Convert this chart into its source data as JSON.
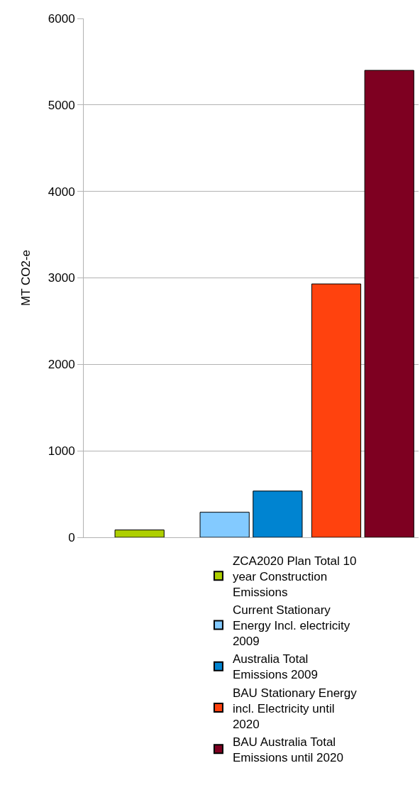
{
  "chart_data": {
    "type": "bar",
    "ylabel": "MT CO2-e",
    "categories": [
      null,
      null,
      null
    ],
    "ylim": [
      0,
      6000
    ],
    "yticks": [
      0,
      1000,
      2000,
      3000,
      4000,
      5000,
      6000
    ],
    "grid": "y",
    "legend": "bottom",
    "series": [
      {
        "name": "ZCA2020 Plan Total 10 year Construction Emissions",
        "color": "#aecf00",
        "values": [
          85,
          null,
          null
        ]
      },
      {
        "name": "Current Stationary Energy Incl. electricity 2009",
        "color": "#83caff",
        "values": [
          null,
          290,
          null
        ]
      },
      {
        "name": "Australia Total Emissions 2009",
        "color": "#0084d1",
        "values": [
          null,
          535,
          null
        ]
      },
      {
        "name": "BAU Stationary Energy incl. Electricity until 2020",
        "color": "#ff420e",
        "values": [
          null,
          null,
          2930
        ]
      },
      {
        "name": "BAU Australia Total Emissions until 2020",
        "color": "#7e0021",
        "values": [
          null,
          null,
          5400
        ]
      }
    ]
  }
}
